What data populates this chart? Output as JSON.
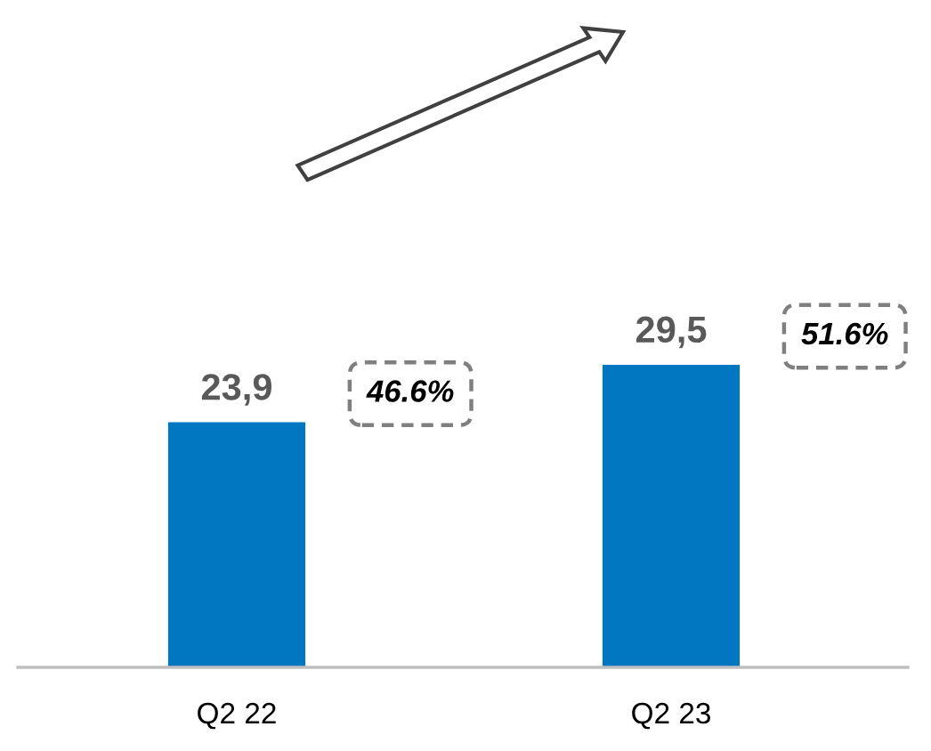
{
  "chart_data": {
    "type": "bar",
    "categories": [
      "Q2 22",
      "Q2 23"
    ],
    "values": [
      23.9,
      29.5
    ],
    "value_labels": [
      "23,9",
      "29,5"
    ],
    "color": "#0077c0",
    "annotations": [
      "46.6%",
      "51.6%"
    ],
    "grid": false,
    "legend": false
  }
}
